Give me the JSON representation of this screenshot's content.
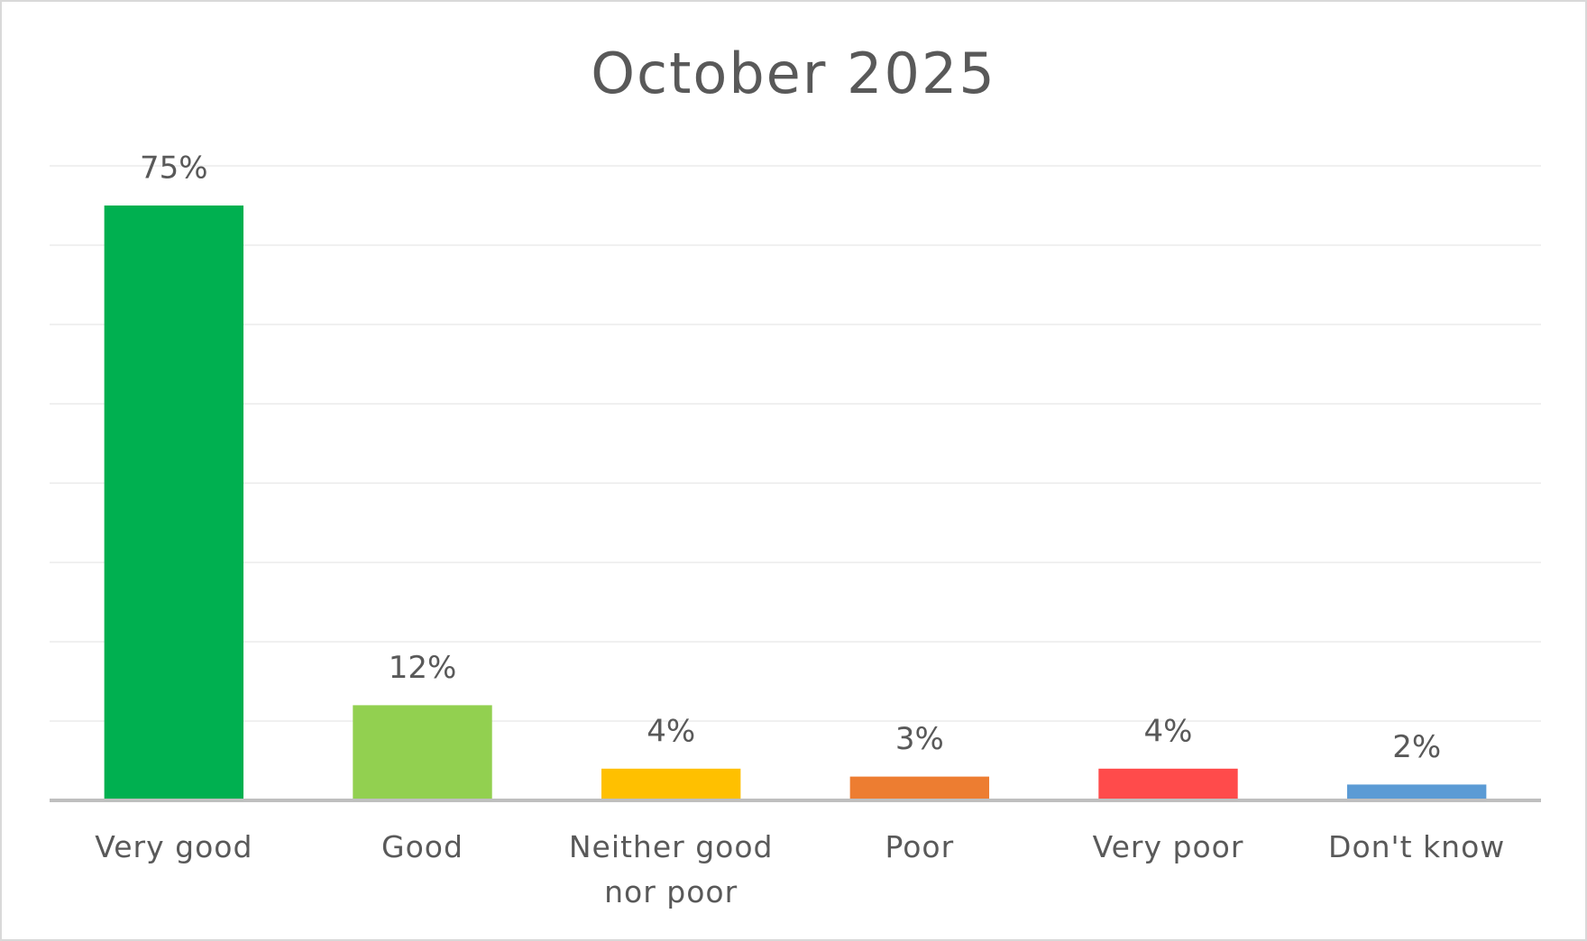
{
  "chart_data": {
    "type": "bar",
    "title": "October 2025",
    "categories": [
      "Very good",
      "Good",
      "Neither good nor poor",
      "Poor",
      "Very poor",
      "Don't know"
    ],
    "values": [
      75,
      12,
      4,
      3,
      4,
      2
    ],
    "value_labels": [
      "75%",
      "12%",
      "4%",
      "3%",
      "4%",
      "2%"
    ],
    "colors": [
      "#00b050",
      "#92d050",
      "#ffc000",
      "#ed7d31",
      "#ff4b4b",
      "#5b9bd5"
    ],
    "ylim": [
      0,
      80
    ],
    "yticks": [
      0,
      10,
      20,
      30,
      40,
      50,
      60,
      70,
      80
    ],
    "grid": true
  }
}
